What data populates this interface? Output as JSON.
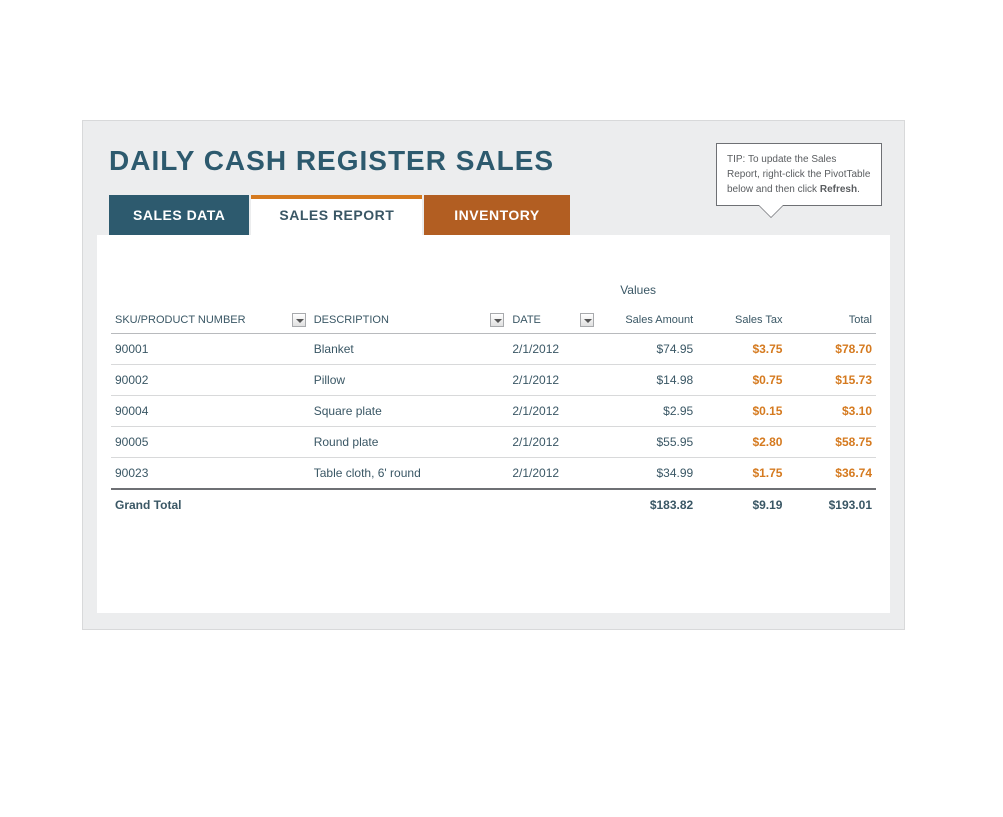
{
  "title": "DAILY CASH REGISTER SALES",
  "tip": {
    "prefix": "TIP: ",
    "text1": "To update the Sales Report, right-click the PivotTable below and then click ",
    "bold_word": "Refresh",
    "suffix": "."
  },
  "tabs": {
    "sales_data": "SALES DATA",
    "sales_report": "SALES REPORT",
    "inventory": "INVENTORY"
  },
  "colors": {
    "title_color": "#2d5a6e",
    "tab_teal": "#2d5a6e",
    "tab_orange": "#b25e22",
    "accent_orange": "#d57a1f",
    "text_color": "#3a5765",
    "bg_gray": "#ecedee"
  },
  "table": {
    "values_label": "Values",
    "headers": {
      "sku": "SKU/PRODUCT NUMBER",
      "description": "DESCRIPTION",
      "date": "DATE",
      "sales_amount": "Sales Amount",
      "sales_tax": "Sales Tax",
      "total": "Total"
    },
    "rows": [
      {
        "sku": "90001",
        "description": "Blanket",
        "date": "2/1/2012",
        "sales_amount": "$74.95",
        "sales_tax": "$3.75",
        "total": "$78.70"
      },
      {
        "sku": "90002",
        "description": "Pillow",
        "date": "2/1/2012",
        "sales_amount": "$14.98",
        "sales_tax": "$0.75",
        "total": "$15.73"
      },
      {
        "sku": "90004",
        "description": "Square plate",
        "date": "2/1/2012",
        "sales_amount": "$2.95",
        "sales_tax": "$0.15",
        "total": "$3.10"
      },
      {
        "sku": "90005",
        "description": "Round plate",
        "date": "2/1/2012",
        "sales_amount": "$55.95",
        "sales_tax": "$2.80",
        "total": "$58.75"
      },
      {
        "sku": "90023",
        "description": "Table cloth, 6' round",
        "date": "2/1/2012",
        "sales_amount": "$34.99",
        "sales_tax": "$1.75",
        "total": "$36.74"
      }
    ],
    "grand_total": {
      "label": "Grand Total",
      "sales_amount": "$183.82",
      "sales_tax": "$9.19",
      "total": "$193.01"
    }
  }
}
